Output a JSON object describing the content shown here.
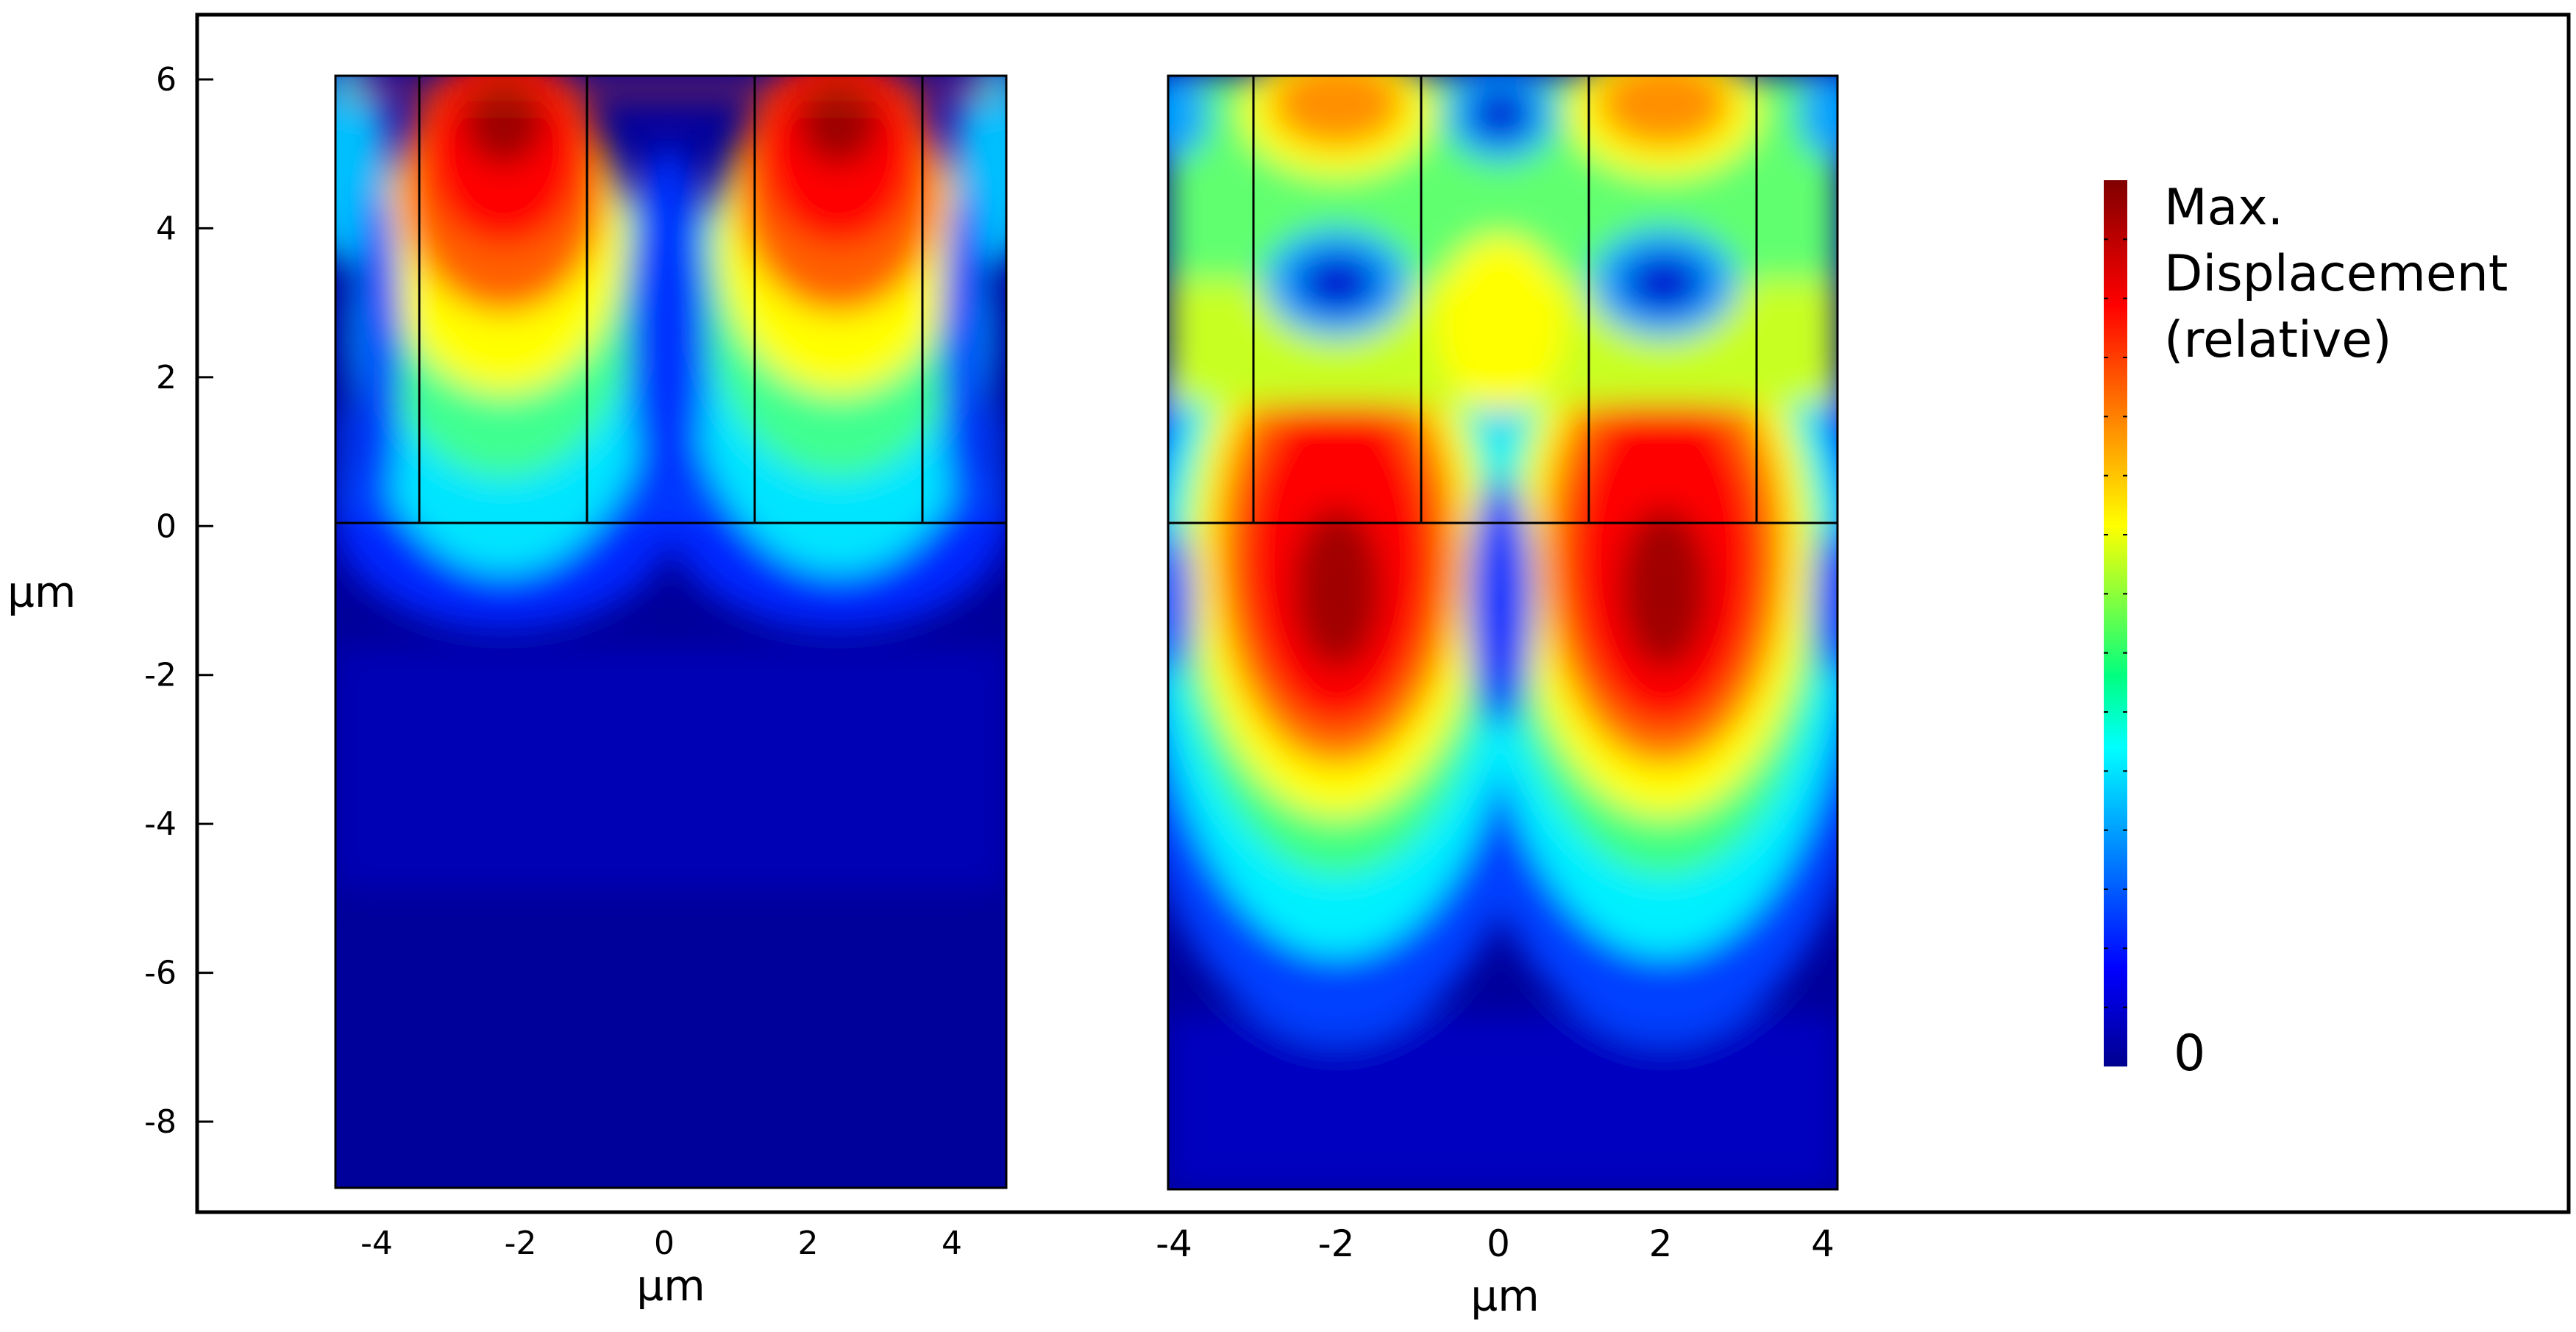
{
  "chart_data": [
    {
      "type": "heatmap",
      "panel": "left",
      "xlabel": "µm",
      "ylabel": "µm",
      "xticks": [
        -4,
        -2,
        0,
        2,
        4
      ],
      "yticks": [
        6,
        4,
        2,
        0,
        -2,
        -4,
        -6,
        -8
      ],
      "xlim": [
        -4.5,
        4.5
      ],
      "ylim": [
        -8.9,
        6.05
      ],
      "grating_interface_y": 0,
      "grating_lines_x": [
        -3.4,
        -1.1,
        1.2,
        3.5
      ],
      "peak_centers": [
        {
          "x": -2.3,
          "y": 5.5
        },
        {
          "x": 2.3,
          "y": 5.5
        }
      ]
    },
    {
      "type": "heatmap",
      "panel": "right",
      "xlabel": "µm",
      "xticks": [
        -4,
        -2,
        0,
        2,
        4
      ],
      "xlim": [
        -4.05,
        4.2
      ],
      "ylim": [
        -8.9,
        6.05
      ],
      "grating_interface_y": 0,
      "grating_lines_x": [
        -3.0,
        -0.95,
        1.1,
        3.2
      ],
      "peak_centers": [
        {
          "x": -2.0,
          "y": -1.0
        },
        {
          "x": 2.0,
          "y": -1.0
        }
      ]
    }
  ],
  "colorbar": {
    "label_lines": [
      "Max.",
      "Displacement",
      "(relative)"
    ],
    "min_label": "0",
    "colormap": "jet",
    "stops": [
      "#00008f",
      "#0000ff",
      "#00ffff",
      "#ffff00",
      "#ff0000",
      "#800000"
    ]
  }
}
